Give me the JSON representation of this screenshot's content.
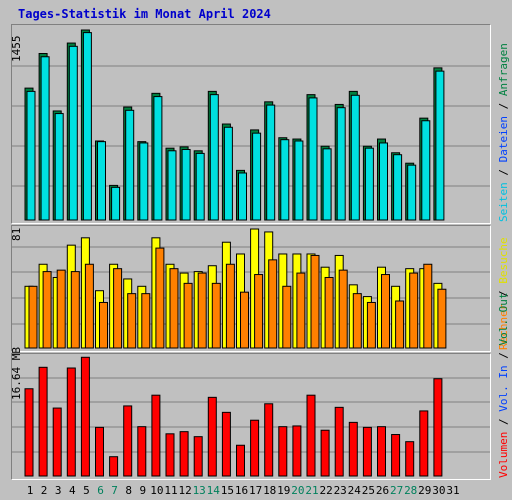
{
  "title": "Tages-Statistik im Monat April 2024",
  "colors": {
    "background": "#c0c0c0",
    "title": "#0000cc",
    "hits": "#008040",
    "files": "#0040ff",
    "pages": "#00e0e0",
    "visits": "#ffff00",
    "sites": "#ff8000",
    "kbytes": "#ff0000",
    "weekend": "#00805c"
  },
  "panels": {
    "top": {
      "ymax_label": "1455",
      "legend": [
        "Anfragen",
        "Dateien",
        "Seiten"
      ]
    },
    "middle": {
      "ymax_label": "81",
      "legend": [
        "Besuche",
        "Rechner"
      ]
    },
    "bottom": {
      "ymax_label": "16.64 MB",
      "legend": [
        "Vol. Out",
        "Vol. In",
        "Volumen"
      ]
    }
  },
  "chart_data": [
    {
      "type": "bar",
      "ylabel": "1455",
      "categories": [
        "1",
        "2",
        "3",
        "4",
        "5",
        "6",
        "7",
        "8",
        "9",
        "10",
        "11",
        "12",
        "13",
        "14",
        "15",
        "16",
        "17",
        "18",
        "19",
        "20",
        "21",
        "22",
        "23",
        "24",
        "25",
        "26",
        "27",
        "28",
        "29",
        "30"
      ],
      "ylim": [
        0,
        1455
      ],
      "series": [
        {
          "name": "Anfragen",
          "values": [
            1010,
            1275,
            835,
            1355,
            1455,
            605,
            265,
            865,
            600,
            970,
            550,
            560,
            530,
            985,
            735,
            380,
            690,
            905,
            630,
            620,
            960,
            565,
            885,
            985,
            565,
            620,
            515,
            435,
            780,
            1165
          ]
        },
        {
          "name": "Dateien",
          "values": [
            985,
            1250,
            815,
            1330,
            1435,
            600,
            250,
            840,
            590,
            945,
            530,
            540,
            510,
            960,
            710,
            360,
            665,
            880,
            615,
            605,
            935,
            545,
            860,
            955,
            550,
            590,
            500,
            420,
            760,
            1140
          ]
        }
      ]
    },
    {
      "type": "bar",
      "ylabel": "81",
      "categories": [
        "1",
        "2",
        "3",
        "4",
        "5",
        "6",
        "7",
        "8",
        "9",
        "10",
        "11",
        "12",
        "13",
        "14",
        "15",
        "16",
        "17",
        "18",
        "19",
        "20",
        "21",
        "22",
        "23",
        "24",
        "25",
        "26",
        "27",
        "28",
        "29",
        "30"
      ],
      "ylim": [
        0,
        81
      ],
      "series": [
        {
          "name": "Besuche",
          "values": [
            42,
            57,
            48,
            70,
            75,
            39,
            57,
            47,
            42,
            75,
            57,
            51,
            52,
            56,
            72,
            64,
            81,
            79,
            64,
            64,
            64,
            55,
            63,
            43,
            35,
            55,
            42,
            54,
            54,
            44
          ]
        },
        {
          "name": "Rechner",
          "values": [
            42,
            52,
            53,
            52,
            57,
            31,
            54,
            37,
            37,
            68,
            54,
            44,
            51,
            44,
            57,
            38,
            50,
            60,
            42,
            51,
            63,
            48,
            53,
            37,
            31,
            50,
            32,
            51,
            57,
            40
          ]
        }
      ]
    },
    {
      "type": "bar",
      "ylabel": "16.64 MB",
      "categories": [
        "1",
        "2",
        "3",
        "4",
        "5",
        "6",
        "7",
        "8",
        "9",
        "10",
        "11",
        "12",
        "13",
        "14",
        "15",
        "16",
        "17",
        "18",
        "19",
        "20",
        "21",
        "22",
        "23",
        "24",
        "25",
        "26",
        "27",
        "28",
        "29",
        "30"
      ],
      "ylim": [
        0,
        16.64
      ],
      "series": [
        {
          "name": "Volumen",
          "values": [
            12.2,
            15.2,
            9.5,
            15.1,
            16.6,
            6.8,
            2.7,
            9.8,
            6.9,
            11.3,
            5.9,
            6.2,
            5.5,
            11.0,
            8.9,
            4.3,
            7.8,
            10.1,
            6.9,
            7.0,
            11.3,
            6.4,
            9.6,
            7.5,
            6.8,
            6.9,
            5.8,
            4.8,
            9.1,
            13.6
          ]
        }
      ]
    }
  ],
  "x_labels": [
    "1",
    "2",
    "3",
    "4",
    "5",
    "6",
    "7",
    "8",
    "9",
    "10",
    "11",
    "12",
    "13",
    "14",
    "15",
    "16",
    "17",
    "18",
    "19",
    "20",
    "21",
    "22",
    "23",
    "24",
    "25",
    "26",
    "27",
    "28",
    "29",
    "30",
    "31"
  ],
  "weekend_days": [
    "6",
    "7",
    "13",
    "14",
    "20",
    "21",
    "27",
    "28"
  ]
}
